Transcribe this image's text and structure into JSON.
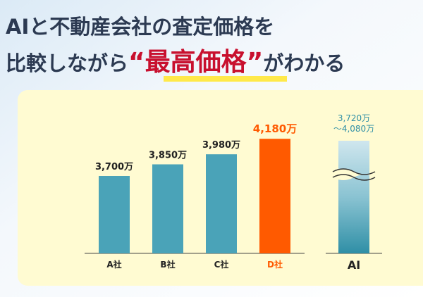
{
  "header": {
    "line1": "AIと不動産会社の査定価格を",
    "line2_pre": "比較しながら",
    "line2_emphasis": "“最高価格”",
    "line2_post": "がわかる"
  },
  "chart_data": [
    {
      "type": "bar",
      "categories": [
        "A社",
        "B社",
        "C社",
        "D社"
      ],
      "values": [
        3700,
        3850,
        3980,
        4180
      ],
      "value_labels": [
        "3,700万",
        "3,850万",
        "3,980万",
        "4,180万"
      ],
      "colors": [
        "#4aa3b8",
        "#4aa3b8",
        "#4aa3b8",
        "#ff5a00"
      ],
      "ylim": [
        2700,
        4200
      ]
    },
    {
      "type": "range",
      "categories": [
        "AI"
      ],
      "low": [
        3720
      ],
      "high": [
        4080
      ],
      "value_labels": [
        "3,720万",
        "～4,080万"
      ]
    }
  ]
}
